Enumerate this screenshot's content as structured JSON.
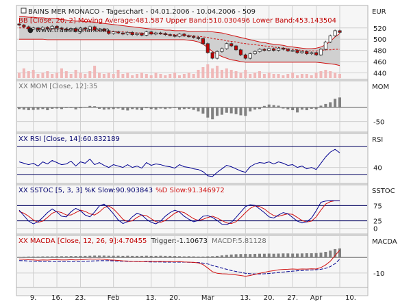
{
  "chart_data": {
    "type": "line",
    "title": "BAINS MER MONACO - Tageschart - 04.01.2006 - 10.04.2006 - 509",
    "watermark": "www.tradesignal.com",
    "currency": "EUR",
    "x_labels": [
      "9.",
      "16.",
      "23.",
      "Feb",
      "13.",
      "20.",
      "Mar",
      "13.",
      "20.",
      "27.",
      "Apr",
      "10."
    ],
    "dates": [
      "2006-01-04",
      "2006-01-05",
      "2006-01-06",
      "2006-01-09",
      "2006-01-10",
      "2006-01-11",
      "2006-01-12",
      "2006-01-13",
      "2006-01-16",
      "2006-01-17",
      "2006-01-18",
      "2006-01-19",
      "2006-01-20",
      "2006-01-23",
      "2006-01-24",
      "2006-01-25",
      "2006-01-26",
      "2006-01-27",
      "2006-01-30",
      "2006-01-31",
      "2006-02-01",
      "2006-02-02",
      "2006-02-03",
      "2006-02-06",
      "2006-02-07",
      "2006-02-08",
      "2006-02-09",
      "2006-02-10",
      "2006-02-13",
      "2006-02-14",
      "2006-02-15",
      "2006-02-16",
      "2006-02-17",
      "2006-02-20",
      "2006-02-21",
      "2006-02-22",
      "2006-02-23",
      "2006-02-24",
      "2006-02-27",
      "2006-02-28",
      "2006-03-01",
      "2006-03-02",
      "2006-03-03",
      "2006-03-06",
      "2006-03-07",
      "2006-03-08",
      "2006-03-09",
      "2006-03-10",
      "2006-03-13",
      "2006-03-14",
      "2006-03-15",
      "2006-03-16",
      "2006-03-17",
      "2006-03-20",
      "2006-03-21",
      "2006-03-22",
      "2006-03-23",
      "2006-03-24",
      "2006-03-27",
      "2006-03-28",
      "2006-03-29",
      "2006-03-30",
      "2006-03-31",
      "2006-04-03",
      "2006-04-04",
      "2006-04-05",
      "2006-04-06",
      "2006-04-07",
      "2006-04-10"
    ],
    "panels": [
      {
        "id": "price",
        "title_prefix": "",
        "title": "BB [Close, 20, 2] Moving Average:481.587 Upper Band:510.030496 Lower Band:453.143504",
        "axis_label": "EUR",
        "y_ticks": [
          440,
          460,
          480,
          500,
          520
        ],
        "ylim": [
          432,
          538
        ],
        "close": [
          525,
          522,
          518,
          520,
          517,
          521,
          519,
          523,
          520,
          518,
          516,
          519,
          514,
          520,
          518,
          522,
          516,
          518,
          515,
          510,
          513,
          511,
          509,
          512,
          508,
          510,
          507,
          513,
          509,
          511,
          510,
          508,
          507,
          505,
          509,
          506,
          505,
          503,
          501,
          492,
          476,
          466,
          478,
          483,
          492,
          488,
          481,
          472,
          466,
          474,
          478,
          482,
          480,
          483,
          480,
          484,
          482,
          479,
          480,
          476,
          478,
          474,
          476,
          472,
          482,
          495,
          506,
          515,
          512
        ],
        "bb_upper": [
          540,
          540,
          539,
          539,
          538,
          538,
          537,
          537,
          536,
          535,
          534,
          533,
          532,
          532,
          531,
          531,
          530,
          529,
          528,
          527,
          526,
          525,
          524,
          523,
          522,
          521,
          520,
          519,
          518,
          518,
          517,
          516,
          516,
          515,
          515,
          515,
          514,
          514,
          514,
          514,
          514,
          513,
          512,
          511,
          509,
          507,
          505,
          503,
          501,
          499,
          497,
          495,
          494,
          492,
          491,
          490,
          489,
          487,
          486,
          485,
          484,
          483,
          483,
          484,
          486,
          490,
          496,
          504,
          510
        ],
        "bb_middle": [
          520,
          520,
          519,
          519,
          519,
          519,
          518,
          518,
          518,
          518,
          517,
          517,
          517,
          516,
          516,
          516,
          516,
          515,
          515,
          514,
          514,
          513,
          513,
          512,
          512,
          511,
          511,
          510,
          510,
          510,
          509,
          509,
          508,
          508,
          507,
          507,
          506,
          506,
          505,
          504,
          503,
          501,
          500,
          499,
          497,
          496,
          495,
          493,
          492,
          491,
          490,
          489,
          488,
          487,
          486,
          485,
          484,
          483,
          482,
          481,
          480,
          479,
          479,
          479,
          480,
          481,
          481,
          482,
          482
        ],
        "bb_lower": [
          500,
          500,
          500,
          500,
          500,
          500,
          499,
          499,
          499,
          499,
          499,
          499,
          499,
          499,
          499,
          499,
          499,
          499,
          499,
          499,
          499,
          499,
          499,
          499,
          499,
          499,
          499,
          499,
          499,
          499,
          499,
          499,
          499,
          499,
          499,
          499,
          498,
          497,
          495,
          491,
          485,
          478,
          473,
          469,
          466,
          463,
          462,
          460,
          459,
          459,
          459,
          459,
          459,
          459,
          459,
          459,
          459,
          459,
          459,
          459,
          459,
          459,
          459,
          459,
          458,
          457,
          456,
          455,
          453
        ],
        "volume": [
          0.4,
          0.7,
          0.5,
          0.6,
          0.3,
          0.4,
          0.5,
          0.3,
          0.4,
          0.7,
          0.5,
          0.3,
          0.6,
          0.4,
          0.3,
          0.5,
          0.9,
          0.4,
          0.3,
          0.4,
          0.3,
          0.6,
          0.3,
          0.4,
          0.2,
          0.3,
          0.4,
          0.3,
          0.2,
          0.4,
          0.3,
          0.2,
          0.3,
          0.4,
          0.2,
          0.3,
          0.4,
          0.3,
          0.6,
          0.8,
          1.0,
          0.7,
          0.9,
          0.6,
          0.7,
          0.6,
          0.5,
          0.4,
          0.6,
          0.3,
          0.4,
          0.5,
          0.3,
          0.4,
          0.3,
          0.3,
          0.2,
          0.3,
          0.4,
          0.2,
          0.3,
          0.3,
          0.2,
          0.4,
          0.5,
          0.6,
          0.5,
          0.4,
          0.3
        ]
      },
      {
        "id": "mom",
        "title_prefix": "XX",
        "title": "MOM [Close, 12]:35",
        "axis_label": "MOM",
        "y_ticks": [
          -50
        ],
        "ylim": [
          -80,
          60
        ],
        "mom": [
          -6,
          -8,
          -10,
          -9,
          -8,
          -6,
          -10,
          -5,
          -4,
          -6,
          -2,
          -1,
          -7,
          -3,
          2,
          5,
          4,
          -5,
          -8,
          -7,
          -6,
          -4,
          -9,
          -11,
          -6,
          -8,
          -10,
          -3,
          -6,
          -8,
          -4,
          -6,
          -4,
          -2,
          -8,
          -6,
          -5,
          -9,
          -14,
          -22,
          -36,
          -42,
          -30,
          -26,
          -19,
          -21,
          -24,
          -28,
          -30,
          -14,
          -8,
          -6,
          5,
          10,
          8,
          6,
          -4,
          -7,
          -10,
          -18,
          -8,
          -10,
          -5,
          -7,
          6,
          12,
          18,
          30,
          35
        ]
      },
      {
        "id": "rsi",
        "title_prefix": "XX",
        "title": "RSI [Close, 14]:60.832189",
        "axis_label": "RSI",
        "y_ticks": [
          40
        ],
        "ylim": [
          20,
          75
        ],
        "levels": [
          30,
          70
        ],
        "rsi": [
          48,
          46,
          44,
          46,
          42,
          48,
          45,
          50,
          47,
          44,
          45,
          49,
          42,
          48,
          46,
          52,
          44,
          47,
          43,
          40,
          44,
          42,
          40,
          44,
          40,
          42,
          39,
          47,
          43,
          45,
          44,
          42,
          41,
          39,
          44,
          41,
          40,
          38,
          37,
          34,
          28,
          27,
          33,
          38,
          43,
          41,
          38,
          35,
          33,
          41,
          45,
          47,
          46,
          48,
          45,
          48,
          46,
          43,
          44,
          40,
          42,
          38,
          40,
          37,
          46,
          55,
          62,
          66,
          61
        ]
      },
      {
        "id": "sstoc",
        "title_prefix": "XX",
        "title": "SSTOC [5, 3, 3] %K Slow:90.903843",
        "title_red": "%D Slow:91.346972",
        "axis_label": "SSTOC",
        "y_ticks": [
          0,
          25,
          75
        ],
        "ylim": [
          -12,
          112
        ],
        "levels": [
          25,
          75
        ],
        "k": [
          60,
          42,
          24,
          15,
          22,
          36,
          52,
          64,
          54,
          40,
          38,
          55,
          66,
          58,
          44,
          38,
          54,
          74,
          80,
          66,
          48,
          28,
          16,
          22,
          38,
          50,
          44,
          30,
          20,
          15,
          24,
          40,
          52,
          60,
          54,
          40,
          30,
          22,
          26,
          40,
          42,
          36,
          26,
          14,
          12,
          20,
          36,
          54,
          72,
          78,
          76,
          64,
          52,
          38,
          34,
          44,
          52,
          48,
          36,
          24,
          18,
          22,
          34,
          58,
          86,
          90,
          92,
          91,
          91
        ],
        "d": [
          55,
          50,
          40,
          28,
          20,
          24,
          36,
          50,
          56,
          52,
          44,
          44,
          52,
          60,
          56,
          48,
          44,
          54,
          68,
          74,
          64,
          48,
          30,
          22,
          25,
          36,
          44,
          42,
          32,
          22,
          20,
          26,
          38,
          50,
          56,
          52,
          42,
          32,
          26,
          30,
          36,
          40,
          34,
          26,
          18,
          16,
          22,
          36,
          52,
          66,
          74,
          72,
          64,
          52,
          42,
          40,
          44,
          48,
          46,
          36,
          26,
          21,
          24,
          38,
          60,
          80,
          88,
          91,
          91
        ]
      },
      {
        "id": "macd",
        "title_prefix": "XX",
        "title": "MACDA [Close, 12, 26, 9]:4.70455",
        "title_black": "Trigger:-1.10673",
        "title_grey": "MACDF:5.81128",
        "axis_label": "MACDA",
        "y_ticks": [
          -10
        ],
        "ylim": [
          -18,
          8
        ],
        "macd": [
          -1.0,
          -1.2,
          -1.5,
          -1.6,
          -1.8,
          -1.6,
          -1.7,
          -1.5,
          -1.5,
          -1.6,
          -1.6,
          -1.4,
          -1.6,
          -1.5,
          -1.3,
          -1.0,
          -1.1,
          -1.0,
          -1.2,
          -1.6,
          -1.7,
          -1.9,
          -2.2,
          -2.3,
          -2.5,
          -2.6,
          -2.8,
          -2.6,
          -2.6,
          -2.7,
          -2.6,
          -2.7,
          -2.7,
          -2.8,
          -2.7,
          -2.9,
          -3.0,
          -3.2,
          -3.5,
          -4.6,
          -6.8,
          -9.2,
          -10.2,
          -10.5,
          -10.6,
          -10.9,
          -11.2,
          -11.6,
          -12.1,
          -11.6,
          -10.9,
          -10.2,
          -9.6,
          -8.9,
          -8.5,
          -8.0,
          -7.7,
          -7.6,
          -7.4,
          -7.6,
          -7.4,
          -7.5,
          -7.3,
          -7.4,
          -6.5,
          -4.8,
          -2.4,
          1.2,
          4.7
        ],
        "trigger": [
          -2.0,
          -2.1,
          -2.3,
          -2.4,
          -2.5,
          -2.5,
          -2.6,
          -2.6,
          -2.6,
          -2.6,
          -2.6,
          -2.6,
          -2.6,
          -2.5,
          -2.4,
          -2.3,
          -2.2,
          -2.1,
          -2.1,
          -2.1,
          -2.2,
          -2.3,
          -2.4,
          -2.5,
          -2.6,
          -2.7,
          -2.8,
          -2.8,
          -2.9,
          -2.9,
          -2.9,
          -3.0,
          -3.0,
          -3.0,
          -3.0,
          -3.0,
          -3.1,
          -3.2,
          -3.3,
          -3.6,
          -4.2,
          -5.1,
          -6.0,
          -6.8,
          -7.6,
          -8.4,
          -9.0,
          -9.6,
          -10.2,
          -10.5,
          -10.6,
          -10.6,
          -10.5,
          -10.3,
          -10.0,
          -9.7,
          -9.4,
          -9.1,
          -8.8,
          -8.6,
          -8.4,
          -8.2,
          -8.1,
          -7.9,
          -7.6,
          -7.0,
          -5.9,
          -4.0,
          -1.1
        ],
        "hist": [
          0.4,
          0.5,
          0.6,
          0.6,
          0.6,
          0.7,
          0.7,
          0.7,
          0.8,
          0.8,
          0.8,
          0.9,
          0.9,
          1.0,
          1.0,
          1.1,
          1.2,
          1.2,
          1.2,
          1.1,
          1.1,
          1.1,
          1.0,
          1.1,
          1.0,
          1.0,
          1.0,
          1.1,
          1.0,
          1.0,
          1.1,
          1.0,
          1.0,
          0.9,
          0.8,
          0.7,
          0.8,
          0.7,
          0.6,
          0.6,
          0.7,
          0.8,
          1.0,
          1.3,
          1.6,
          1.9,
          2.1,
          2.2,
          2.3,
          2.2,
          2.3,
          2.4,
          2.4,
          2.5,
          2.4,
          2.5,
          2.6,
          2.6,
          2.5,
          2.5,
          2.6,
          2.7,
          2.7,
          2.8,
          3.1,
          3.6,
          4.4,
          5.4,
          5.8
        ]
      }
    ],
    "colors": {
      "candle_down": "#c00000",
      "candle_up": "#ffffff",
      "band_fill": "#cccccc",
      "band_line": "#d01010",
      "ma_line": "#d01010",
      "volume": "#f0b8b8",
      "bar": "#808080",
      "rsi": "#000090",
      "k": "#000090",
      "d": "#d01010",
      "level_line": "#000060",
      "grid": "#cfcfcf",
      "background": "#ffffff"
    },
    "grid": true
  }
}
